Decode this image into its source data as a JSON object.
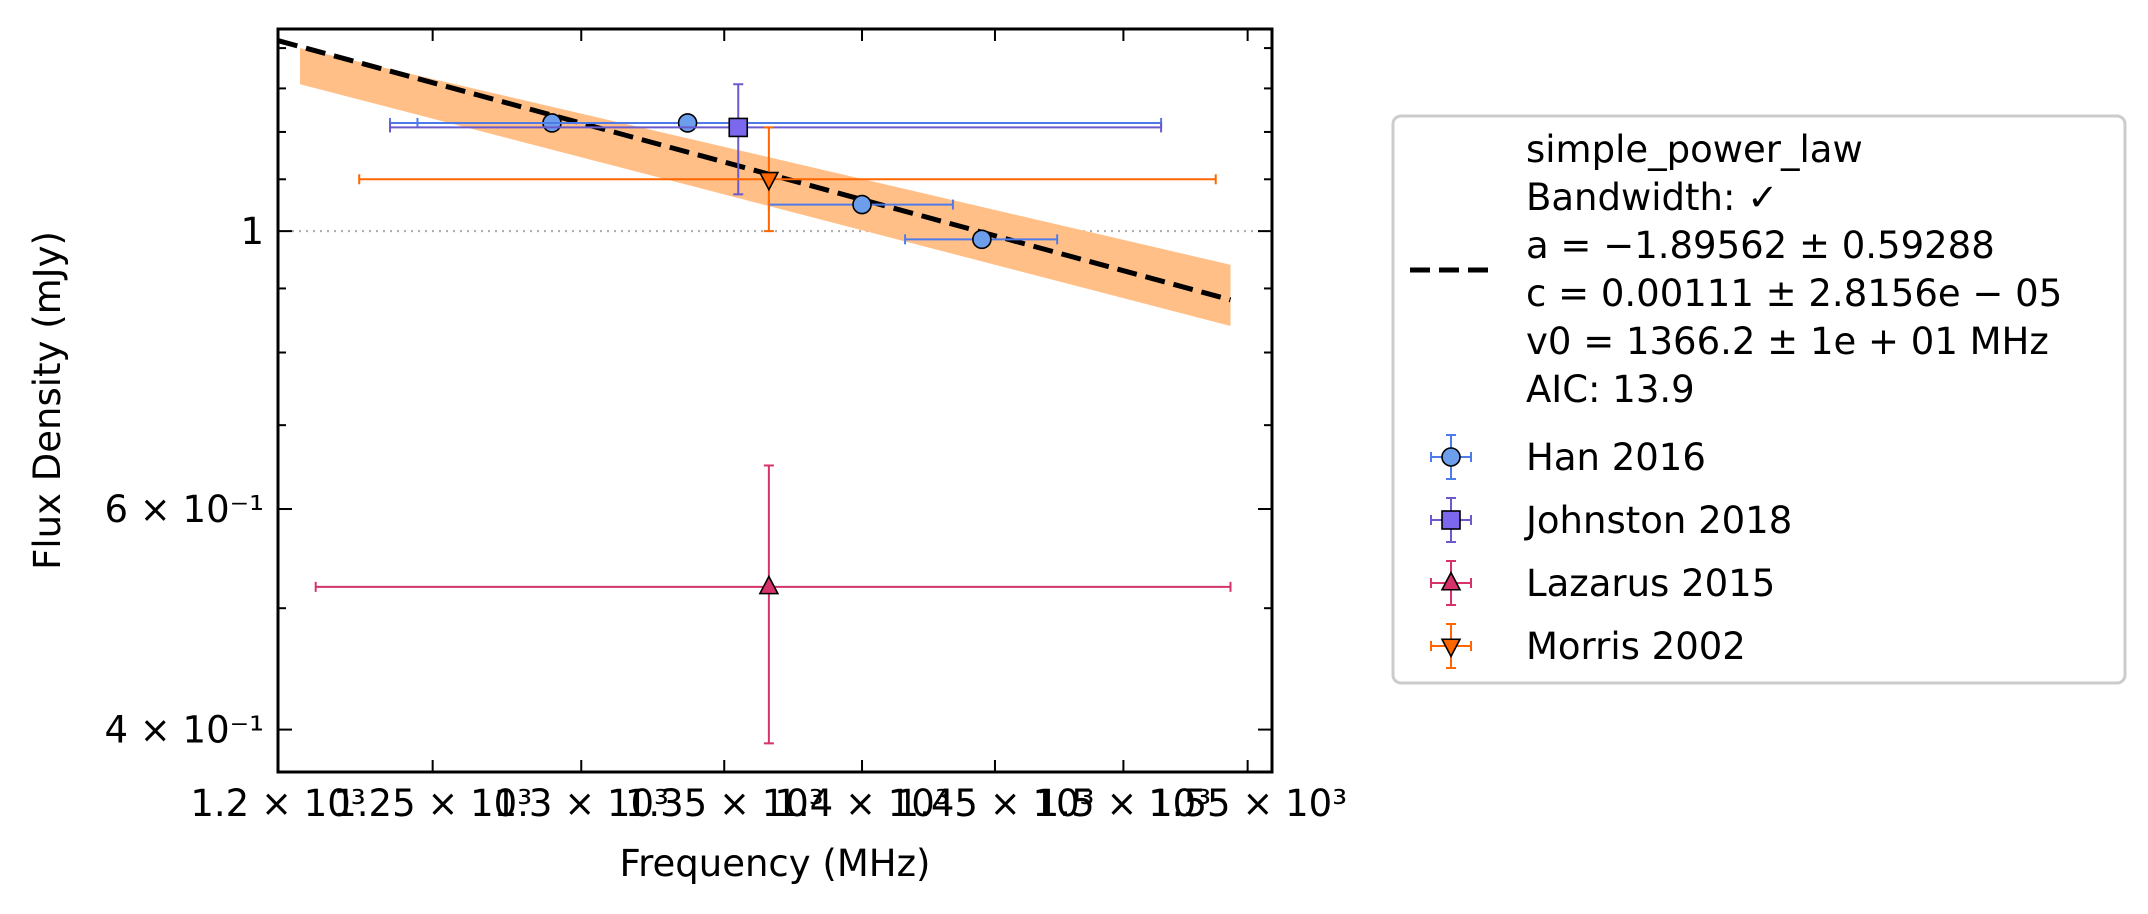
{
  "chart_data": {
    "type": "scatter",
    "xlabel": "Frequency (MHz)",
    "ylabel": "Flux Density (mJy)",
    "xscale": "log",
    "yscale": "log",
    "xlim": [
      1200,
      1560
    ],
    "ylim": [
      0.37,
      1.45
    ],
    "grid": false,
    "legend_position": "outside-right",
    "x_ticks": [
      {
        "value": 1200,
        "label": "1.2 × 10³"
      },
      {
        "value": 1250,
        "label": "1.25 × 10³"
      },
      {
        "value": 1300,
        "label": "1.3 × 10³"
      },
      {
        "value": 1350,
        "label": "1.35 × 10³"
      },
      {
        "value": 1400,
        "label": "1.4 × 10³"
      },
      {
        "value": 1450,
        "label": "1.45 × 10³"
      },
      {
        "value": 1500,
        "label": "1.5 × 10³"
      },
      {
        "value": 1550,
        "label": "1.55 × 10³"
      }
    ],
    "y_ticks": [
      {
        "value": 0.4,
        "label": "4 × 10⁻¹"
      },
      {
        "value": 0.6,
        "label": "6 × 10⁻¹"
      },
      {
        "value": 1.0,
        "label": "1"
      }
    ],
    "y_minor_ticks": [
      0.5,
      0.7,
      0.8,
      0.9,
      1.1,
      1.2,
      1.3,
      1.4
    ],
    "reference_line": {
      "y": 1.0,
      "style": "dotted",
      "color": "#aaaaaa"
    },
    "fit": {
      "model": "simple_power_law",
      "a": -1.89562,
      "c": 0.00111,
      "v0_mhz": 1366.2,
      "x_range": [
        1207,
        1543
      ],
      "band_low_at_start": 1.31,
      "band_high_at_start": 1.4,
      "band_low_at_end": 0.84,
      "band_high_at_end": 0.94,
      "line_color": "#000000",
      "band_color": "#ffbf87"
    },
    "legend": {
      "fit_lines": [
        "simple_power_law",
        "Bandwidth: ✓",
        "a = −1.89562 ± 0.59288",
        "c = 0.00111 ± 2.8156e − 05",
        "v0 = 1366.2 ± 1e + 01 MHz",
        "AIC: 13.9"
      ]
    },
    "series": [
      {
        "name": "Han 2016",
        "marker": "circle",
        "color": "#6d9eeb",
        "ecolor": "#4f7be8",
        "points": [
          {
            "x": 1290,
            "y": 1.22,
            "xmin": 1245,
            "xmax": 1353,
            "yerr": 0.015
          },
          {
            "x": 1337,
            "y": 1.22,
            "xmin": 1236,
            "xmax": 1515,
            "yerr": 0.012
          },
          {
            "x": 1400,
            "y": 1.05,
            "xmin": 1366,
            "xmax": 1434,
            "yerr": 0.008
          },
          {
            "x": 1445,
            "y": 0.985,
            "xmin": 1416,
            "xmax": 1474,
            "yerr": 0.013
          }
        ]
      },
      {
        "name": "Johnston 2018",
        "marker": "square",
        "color": "#7b68ee",
        "ecolor": "#6a5acd",
        "points": [
          {
            "x": 1355,
            "y": 1.21,
            "xmin": 1236,
            "xmax": 1515,
            "yerr_low": 0.14,
            "yerr_high": 0.1
          }
        ]
      },
      {
        "name": "Lazarus 2015",
        "marker": "triangle-up",
        "color": "#d6336c",
        "ecolor": "#d6336c",
        "points": [
          {
            "x": 1366,
            "y": 0.52,
            "xmin": 1212,
            "xmax": 1543,
            "yerr_low": 0.13,
            "yerr_high": 0.13
          }
        ]
      },
      {
        "name": "Morris 2002",
        "marker": "triangle-down",
        "color": "#ff6600",
        "ecolor": "#ff6600",
        "points": [
          {
            "x": 1366,
            "y": 1.1,
            "xmin": 1226,
            "xmax": 1537,
            "yerr_low": 0.1,
            "yerr_high": 0.11
          }
        ]
      }
    ]
  }
}
